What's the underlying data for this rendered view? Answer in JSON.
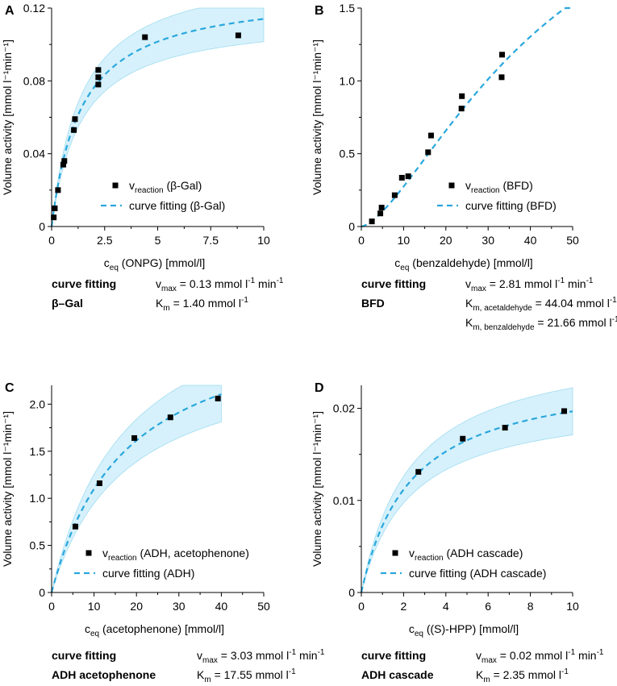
{
  "colors": {
    "fit": "#2aa7dd",
    "band": "#d6f1fb",
    "band_edge": "#9fdcf1",
    "point": "#000000"
  },
  "chart_data": [
    {
      "id": "A",
      "letter": "A",
      "type": "scatter",
      "xlabel": "c",
      "xlabel_sub": "eq",
      "xlabel_rest": " (ONPG) [mmol/l]",
      "ylabel": "Volume activity [mmol l⁻¹min⁻¹]",
      "xlim": [
        0,
        10
      ],
      "ylim": [
        0,
        0.12
      ],
      "xticks": [
        0,
        2.5,
        5,
        7.5,
        10
      ],
      "xtick_labels": [
        "0",
        "2.5",
        "5",
        "7.5",
        "10"
      ],
      "yticks": [
        0,
        0.04,
        0.08,
        0.12
      ],
      "ytick_labels": [
        "0",
        "0.04",
        "0.08",
        "0.12"
      ],
      "points": [
        [
          0.1,
          0.005
        ],
        [
          0.15,
          0.01
        ],
        [
          0.3,
          0.02
        ],
        [
          0.55,
          0.034
        ],
        [
          0.6,
          0.036
        ],
        [
          1.05,
          0.053
        ],
        [
          1.1,
          0.059
        ],
        [
          2.2,
          0.078
        ],
        [
          2.2,
          0.082
        ],
        [
          2.2,
          0.086
        ],
        [
          4.4,
          0.104
        ],
        [
          8.8,
          0.105
        ]
      ],
      "fit": {
        "vmax": 0.13,
        "km": 1.4,
        "lo_factor": 0.89,
        "hi_factor": 1.11,
        "xmax": 10
      },
      "legend": {
        "point_main": "v",
        "point_sub": "reaction",
        "point_rest": " (β-Gal)",
        "fit_label": "curve fitting (β-Gal)"
      },
      "params": [
        {
          "name": "curve fitting",
          "sym": "v",
          "sub": "max",
          "value": " = 0.13 mmol l",
          "unit": "-1",
          "tail": " min",
          "tail_unit": "-1"
        },
        {
          "name": "β–Gal",
          "sym": "K",
          "sub": "m",
          "value": " = 1.40 mmol l",
          "unit": "-1",
          "tail": "",
          "tail_unit": ""
        }
      ]
    },
    {
      "id": "B",
      "letter": "B",
      "type": "scatter",
      "xlabel": "c",
      "xlabel_sub": "eq",
      "xlabel_rest": " (benzaldehyde) [mmol/l]",
      "ylabel": "Volume activity [mmol l⁻¹min⁻¹]",
      "xlim": [
        0,
        50
      ],
      "ylim": [
        0,
        1.5
      ],
      "xticks": [
        0,
        10,
        20,
        30,
        40,
        50
      ],
      "xtick_labels": [
        "0",
        "10",
        "20",
        "30",
        "40",
        "50"
      ],
      "yticks": [
        0,
        0.5,
        1.0,
        1.5
      ],
      "ytick_labels": [
        "0",
        "0.5",
        "1.0",
        "1.5"
      ],
      "points": [
        [
          2.5,
          0.035
        ],
        [
          4.5,
          0.09
        ],
        [
          4.8,
          0.13
        ],
        [
          7.9,
          0.215
        ],
        [
          9.6,
          0.335
        ],
        [
          11.1,
          0.345
        ],
        [
          15.8,
          0.51
        ],
        [
          16.5,
          0.625
        ],
        [
          23.7,
          0.81
        ],
        [
          23.8,
          0.895
        ],
        [
          33.2,
          1.025
        ],
        [
          33.3,
          1.18
        ]
      ],
      "fit": {
        "vmax": 2.81,
        "km": 44.04,
        "power": 1.5,
        "xmax": 50
      },
      "legend": {
        "point_main": "v",
        "point_sub": "reaction",
        "point_rest": " (BFD)",
        "fit_label": "curve fitting (BFD)"
      },
      "params": [
        {
          "name": "curve fitting",
          "sym": "v",
          "sub": "max",
          "value": " = 2.81 mmol l",
          "unit": "-1",
          "tail": " min",
          "tail_unit": "-1"
        },
        {
          "name": "BFD",
          "sym": "K",
          "sub": "m, acetaldehyde",
          "value": " = 44.04 mmol l",
          "unit": "-1",
          "tail": "",
          "tail_unit": ""
        },
        {
          "name": "",
          "sym": "K",
          "sub": "m, benzaldehyde",
          "value": " = 21.66 mmol l",
          "unit": "-1",
          "tail": "",
          "tail_unit": ""
        }
      ]
    },
    {
      "id": "C",
      "letter": "C",
      "type": "scatter",
      "xlabel": "c",
      "xlabel_sub": "eq",
      "xlabel_rest": " (acetophenone) [mmol/l]",
      "ylabel": "Volume activity [mmol l⁻¹min⁻¹]",
      "xlim": [
        0,
        50
      ],
      "ylim": [
        0,
        2.2
      ],
      "xticks": [
        0,
        10,
        20,
        30,
        40,
        50
      ],
      "xtick_labels": [
        "0",
        "10",
        "20",
        "30",
        "40",
        "50"
      ],
      "yticks": [
        0,
        0.5,
        1.0,
        1.5,
        2.0
      ],
      "ytick_labels": [
        "0",
        "0.5",
        "1.0",
        "1.5",
        "2.0"
      ],
      "points": [
        [
          5.6,
          0.7
        ],
        [
          11.3,
          1.16
        ],
        [
          19.5,
          1.64
        ],
        [
          28,
          1.86
        ],
        [
          39.2,
          2.06
        ]
      ],
      "fit": {
        "vmax": 3.03,
        "km": 17.55,
        "lo_factor": 0.86,
        "hi_factor": 1.14,
        "xmax": 40
      },
      "legend": {
        "point_main": "v",
        "point_sub": "reaction",
        "point_rest": " (ADH, acetophenone)",
        "fit_label": "curve fitting (ADH)"
      },
      "params": [
        {
          "name": "curve fitting",
          "sym": "v",
          "sub": "max",
          "value": " = 3.03 mmol l",
          "unit": "-1",
          "tail": " min",
          "tail_unit": "-1"
        },
        {
          "name": "ADH acetophenone",
          "sym": "K",
          "sub": "m",
          "value": " = 17.55 mmol l",
          "unit": "-1",
          "tail": "",
          "tail_unit": ""
        }
      ]
    },
    {
      "id": "D",
      "letter": "D",
      "type": "scatter",
      "xlabel": "c",
      "xlabel_sub": "eq",
      "xlabel_rest": " ((S)-HPP) [mmol/l]",
      "ylabel": "Volume activity [mmol l⁻¹min⁻¹]",
      "xlim": [
        0,
        10
      ],
      "ylim": [
        0,
        0.0225
      ],
      "xticks": [
        0,
        2,
        4,
        6,
        8,
        10
      ],
      "xtick_labels": [
        "0",
        "2",
        "4",
        "6",
        "8",
        "10"
      ],
      "yticks": [
        0,
        0.01,
        0.02
      ],
      "ytick_labels": [
        "0",
        "0.01",
        "0.02"
      ],
      "points": [
        [
          2.7,
          0.0131
        ],
        [
          4.8,
          0.0167
        ],
        [
          6.8,
          0.0179
        ],
        [
          9.6,
          0.0197
        ]
      ],
      "fit": {
        "vmax": 0.0243,
        "km": 2.35,
        "lo_factor": 0.87,
        "hi_factor": 1.13,
        "xmax": 10
      },
      "legend": {
        "point_main": "v",
        "point_sub": "reaction",
        "point_rest": " (ADH cascade)",
        "fit_label": "curve fitting (ADH cascade)"
      },
      "params": [
        {
          "name": "curve fitting",
          "sym": "v",
          "sub": "max",
          "value": " = 0.02 mmol l",
          "unit": "-1",
          "tail": " min",
          "tail_unit": "-1"
        },
        {
          "name": "ADH cascade",
          "sym": "K",
          "sub": "m",
          "value": " = 2.35 mmol l",
          "unit": "-1",
          "tail": "",
          "tail_unit": ""
        }
      ]
    }
  ]
}
